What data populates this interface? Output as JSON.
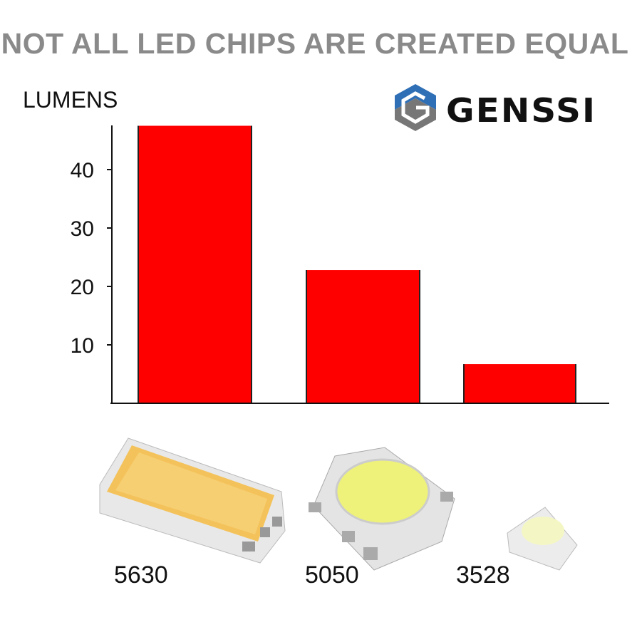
{
  "header": {
    "title": "NOT ALL LED CHIPS ARE CREATED EQUAL",
    "brand": "GENSSI"
  },
  "chart_data": {
    "type": "bar",
    "title": "NOT ALL LED CHIPS ARE CREATED EQUAL",
    "ylabel": "LUMENS",
    "xlabel": "",
    "categories": [
      "5630",
      "5050",
      "3528"
    ],
    "values": [
      47.5,
      22.8,
      6.7
    ],
    "ylim": [
      0,
      47.5
    ],
    "yticks": [
      10,
      20,
      30,
      40
    ],
    "grid": false,
    "bar_color": "#ff0000"
  },
  "colors": {
    "title": "#8a8a8a",
    "logo_blue": "#2f6fb5",
    "logo_gray": "#707070"
  }
}
